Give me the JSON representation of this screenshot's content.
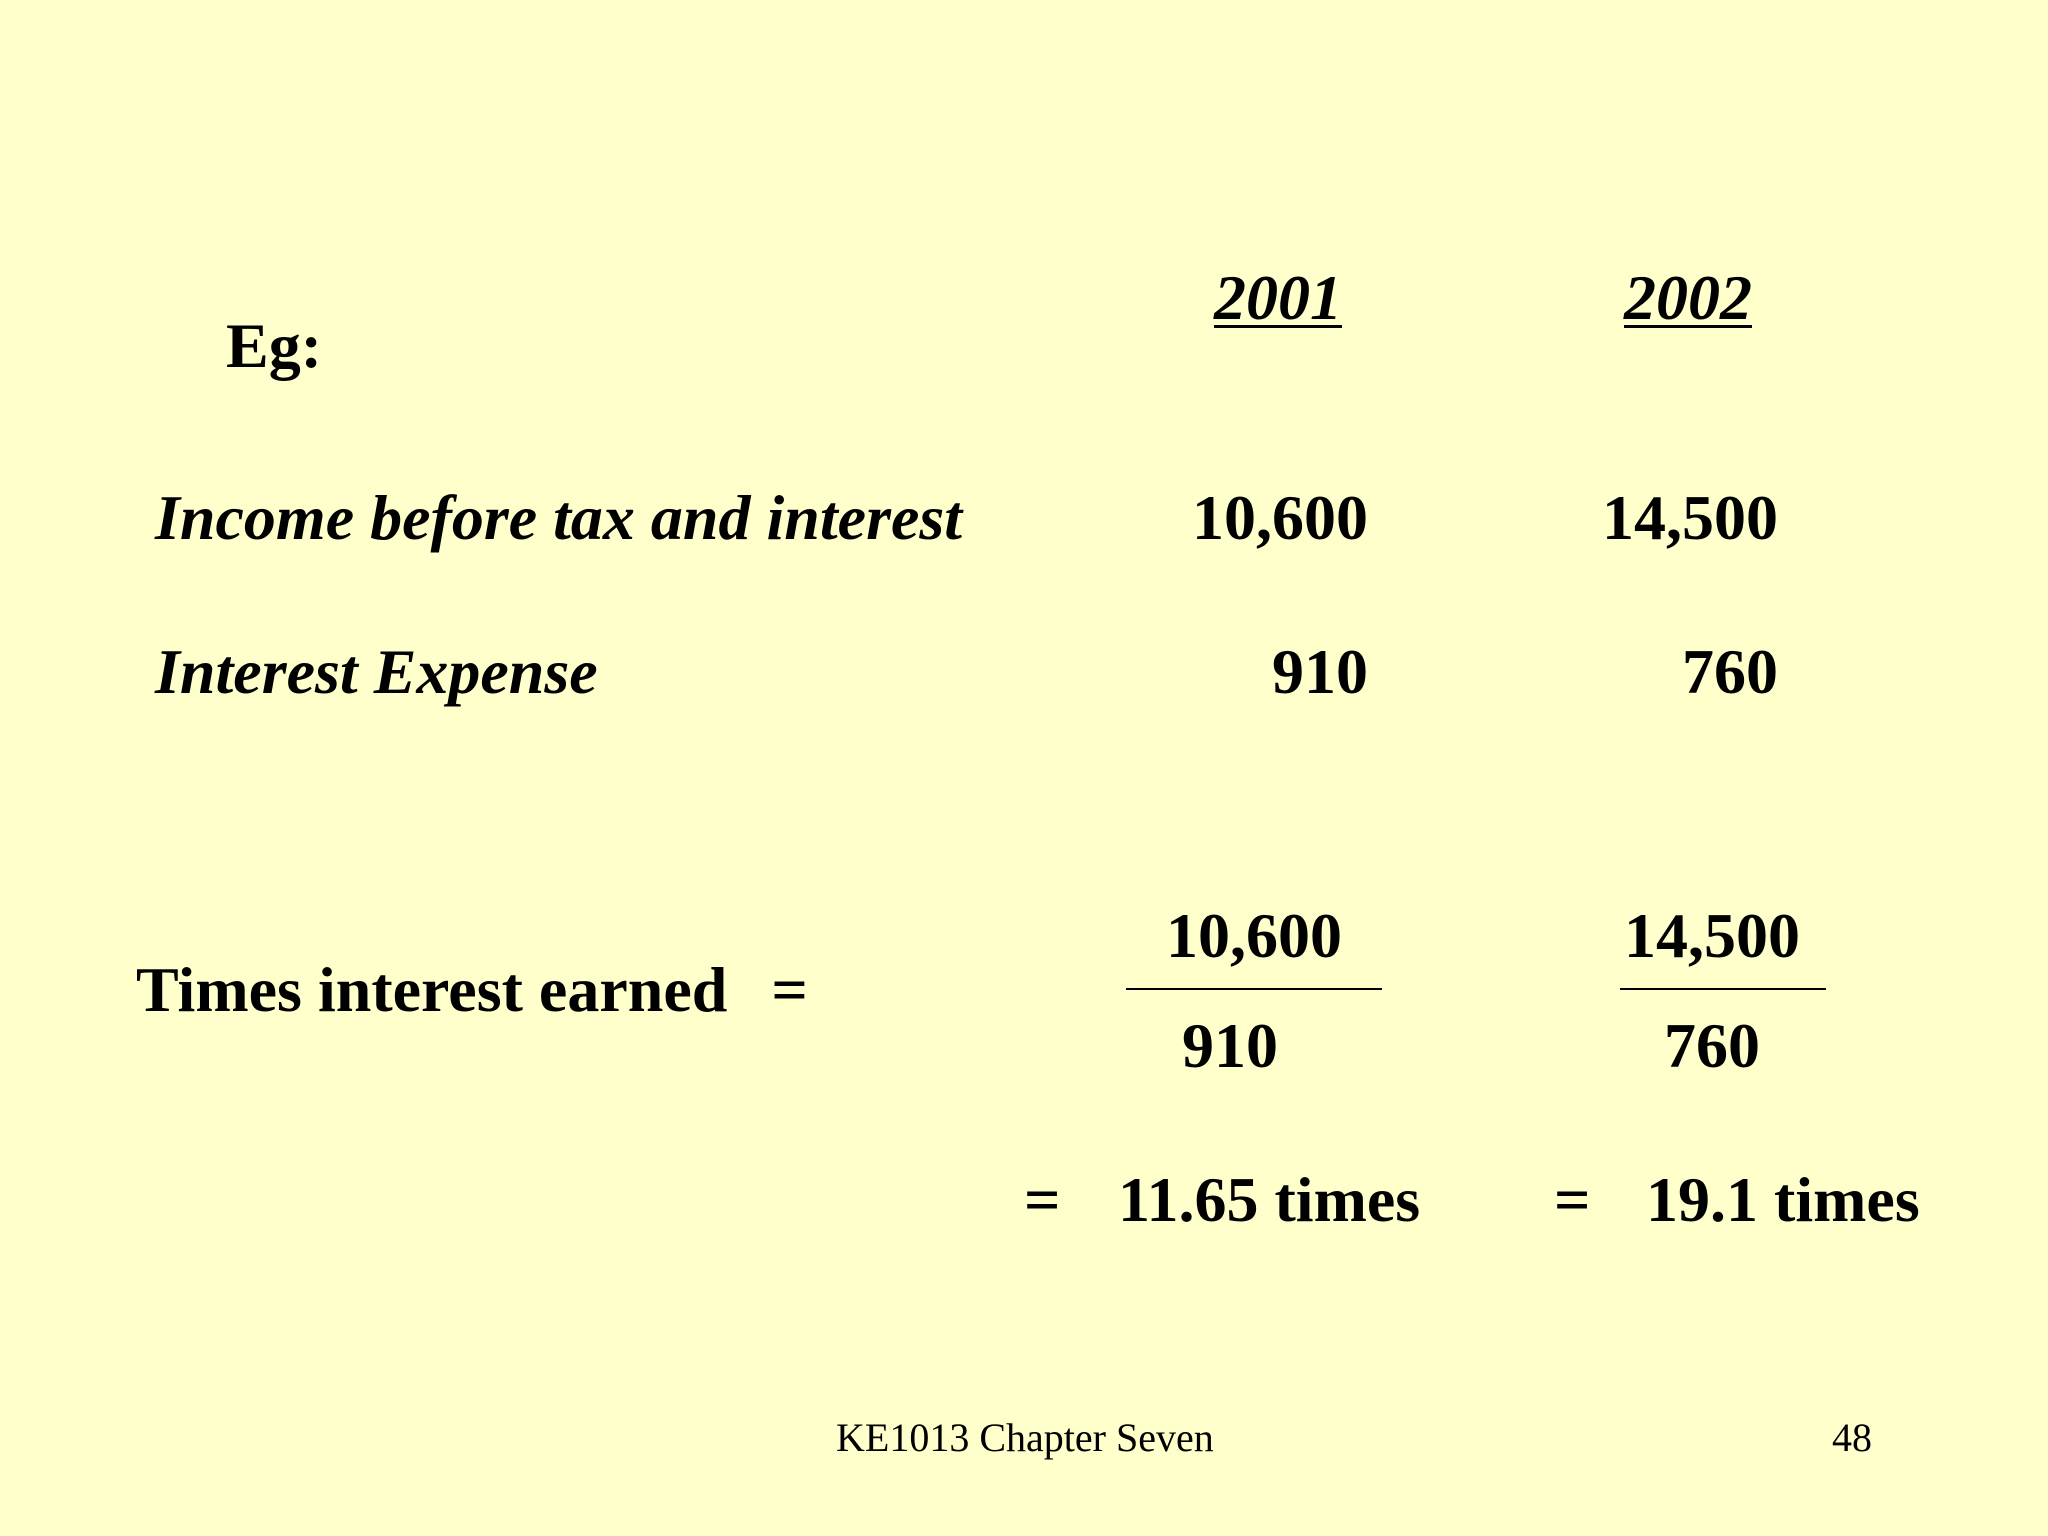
{
  "slide": {
    "example_label": "Eg:",
    "columns": [
      "2001",
      "2002"
    ],
    "rows": [
      {
        "label": "Income before tax and interest",
        "values": [
          "10,600",
          "14,500"
        ]
      },
      {
        "label": "Interest Expense",
        "values": [
          "910",
          "760"
        ]
      }
    ],
    "formula": {
      "label": "Times interest earned",
      "equals": "=",
      "fractions": [
        {
          "numerator": "10,600",
          "denominator": "910"
        },
        {
          "numerator": "14,500",
          "denominator": "760"
        }
      ],
      "results": [
        {
          "equals": "=",
          "value": "11.65 times"
        },
        {
          "equals": "=",
          "value": "19.1 times"
        }
      ]
    },
    "footer": {
      "course": "KE1013 Chapter Seven",
      "page_number": "48"
    }
  }
}
